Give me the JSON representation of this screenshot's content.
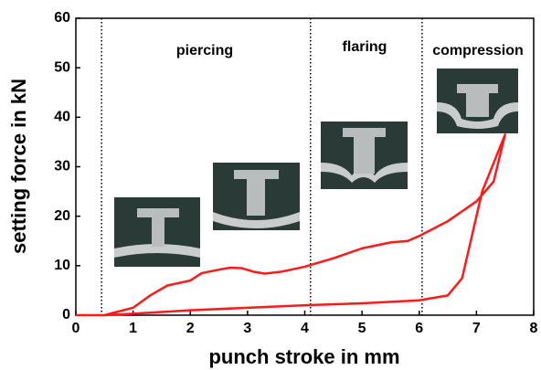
{
  "chart_data": {
    "type": "line",
    "xlabel": "punch stroke in mm",
    "ylabel": "setting force in kN",
    "x": [
      0,
      0.5,
      1,
      1.3,
      1.6,
      2,
      2.2,
      2.5,
      2.7,
      2.9,
      3.1,
      3.3,
      3.6,
      4,
      4.5,
      5,
      5.5,
      5.8,
      6,
      6.5,
      7,
      7.3,
      7.5,
      7.1,
      6.9,
      6.75,
      6.5,
      6,
      5,
      4,
      3,
      2,
      1,
      0.5,
      0
    ],
    "series": [
      {
        "color": "#ff1a1a",
        "values": [
          0,
          0,
          1.5,
          4,
          6,
          7,
          8.5,
          9.2,
          9.6,
          9.5,
          8.8,
          8.4,
          8.8,
          9.8,
          11.5,
          13.5,
          14.7,
          15,
          16,
          19,
          23,
          27,
          36.5,
          25,
          15,
          7.5,
          4,
          3,
          2.4,
          2,
          1.5,
          1,
          0.3,
          0,
          0
        ]
      }
    ],
    "xlim": [
      0,
      8
    ],
    "xticks": [
      0,
      1,
      2,
      3,
      4,
      5,
      6,
      7,
      8
    ],
    "ylim": [
      0,
      60
    ],
    "yticks": [
      0,
      10,
      20,
      30,
      40,
      50,
      60
    ],
    "phase_boundaries": [
      0.45,
      4.1,
      6.05
    ],
    "annotations": [
      "piercing",
      "flaring",
      "compression"
    ]
  }
}
